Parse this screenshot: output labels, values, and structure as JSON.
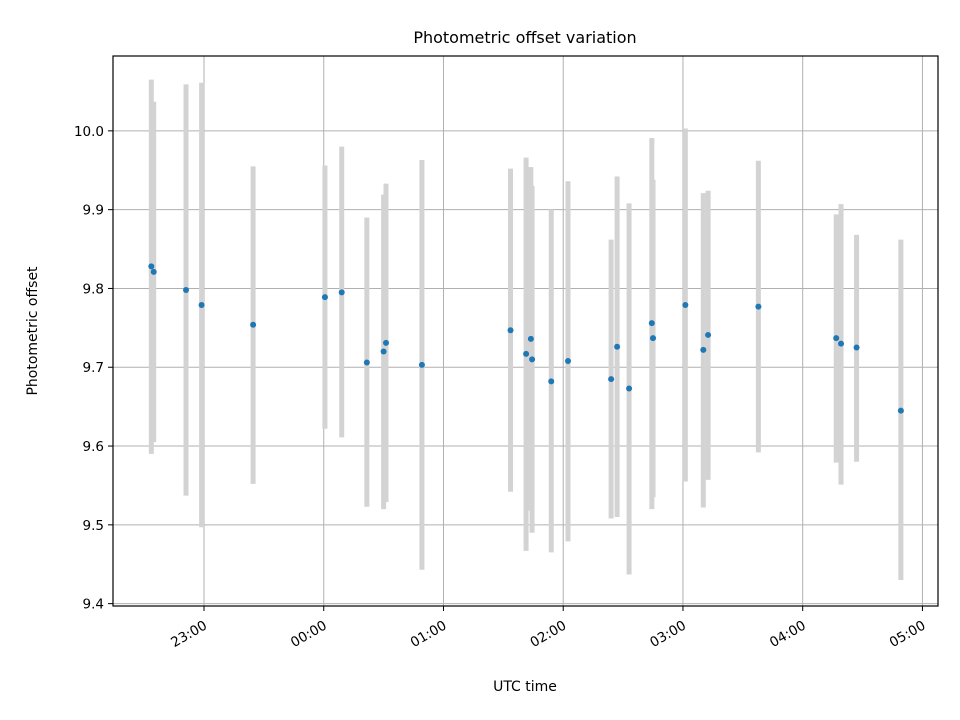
{
  "chart_data": {
    "type": "scatter",
    "title": "Photometric offset variation",
    "xlabel": "UTC time",
    "ylabel": "Photometric offset",
    "xlim_hours": [
      -1.76,
      5.13
    ],
    "ylim": [
      9.397,
      10.095
    ],
    "grid": true,
    "colors": {
      "points": "#1f77b4",
      "errorbars": "#d3d3d3",
      "grid": "#b0b0b0"
    },
    "x_ticks": [
      {
        "value": -1.0,
        "label": "23:00"
      },
      {
        "value": 0.0,
        "label": "00:00"
      },
      {
        "value": 1.0,
        "label": "01:00"
      },
      {
        "value": 2.0,
        "label": "02:00"
      },
      {
        "value": 3.0,
        "label": "03:00"
      },
      {
        "value": 4.0,
        "label": "04:00"
      },
      {
        "value": 5.0,
        "label": "05:00"
      }
    ],
    "y_ticks": [
      {
        "value": 9.4,
        "label": "9.4"
      },
      {
        "value": 9.5,
        "label": "9.5"
      },
      {
        "value": 9.6,
        "label": "9.6"
      },
      {
        "value": 9.7,
        "label": "9.7"
      },
      {
        "value": 9.8,
        "label": "9.8"
      },
      {
        "value": 9.9,
        "label": "9.9"
      },
      {
        "value": 10.0,
        "label": "10.0"
      }
    ],
    "points": [
      {
        "x": -1.44,
        "y": 9.828,
        "lo": 9.59,
        "hi": 10.065
      },
      {
        "x": -1.42,
        "y": 9.821,
        "lo": 9.605,
        "hi": 10.037
      },
      {
        "x": -1.15,
        "y": 9.798,
        "lo": 9.537,
        "hi": 10.059
      },
      {
        "x": -1.02,
        "y": 9.779,
        "lo": 9.497,
        "hi": 10.061
      },
      {
        "x": -0.59,
        "y": 9.754,
        "lo": 9.552,
        "hi": 9.955
      },
      {
        "x": 0.01,
        "y": 9.789,
        "lo": 9.622,
        "hi": 9.956
      },
      {
        "x": 0.15,
        "y": 9.795,
        "lo": 9.611,
        "hi": 9.98
      },
      {
        "x": 0.36,
        "y": 9.706,
        "lo": 9.523,
        "hi": 9.89
      },
      {
        "x": 0.5,
        "y": 9.72,
        "lo": 9.52,
        "hi": 9.919
      },
      {
        "x": 0.52,
        "y": 9.731,
        "lo": 9.529,
        "hi": 9.933
      },
      {
        "x": 0.82,
        "y": 9.703,
        "lo": 9.443,
        "hi": 9.963
      },
      {
        "x": 1.56,
        "y": 9.747,
        "lo": 9.542,
        "hi": 9.952
      },
      {
        "x": 1.69,
        "y": 9.717,
        "lo": 9.467,
        "hi": 9.966
      },
      {
        "x": 1.73,
        "y": 9.736,
        "lo": 9.518,
        "hi": 9.954
      },
      {
        "x": 1.74,
        "y": 9.71,
        "lo": 9.49,
        "hi": 9.93
      },
      {
        "x": 1.9,
        "y": 9.682,
        "lo": 9.465,
        "hi": 9.9
      },
      {
        "x": 2.04,
        "y": 9.708,
        "lo": 9.479,
        "hi": 9.936
      },
      {
        "x": 2.4,
        "y": 9.685,
        "lo": 9.508,
        "hi": 9.862
      },
      {
        "x": 2.45,
        "y": 9.726,
        "lo": 9.51,
        "hi": 9.942
      },
      {
        "x": 2.55,
        "y": 9.673,
        "lo": 9.437,
        "hi": 9.908
      },
      {
        "x": 2.74,
        "y": 9.756,
        "lo": 9.52,
        "hi": 9.991
      },
      {
        "x": 2.75,
        "y": 9.737,
        "lo": 9.535,
        "hi": 9.938
      },
      {
        "x": 3.02,
        "y": 9.779,
        "lo": 9.555,
        "hi": 10.003
      },
      {
        "x": 3.17,
        "y": 9.722,
        "lo": 9.522,
        "hi": 9.921
      },
      {
        "x": 3.21,
        "y": 9.741,
        "lo": 9.557,
        "hi": 9.924
      },
      {
        "x": 3.63,
        "y": 9.777,
        "lo": 9.592,
        "hi": 9.962
      },
      {
        "x": 4.28,
        "y": 9.737,
        "lo": 9.579,
        "hi": 9.894
      },
      {
        "x": 4.32,
        "y": 9.73,
        "lo": 9.551,
        "hi": 9.907
      },
      {
        "x": 4.45,
        "y": 9.725,
        "lo": 9.58,
        "hi": 9.868
      },
      {
        "x": 4.82,
        "y": 9.645,
        "lo": 9.43,
        "hi": 9.862
      }
    ]
  }
}
